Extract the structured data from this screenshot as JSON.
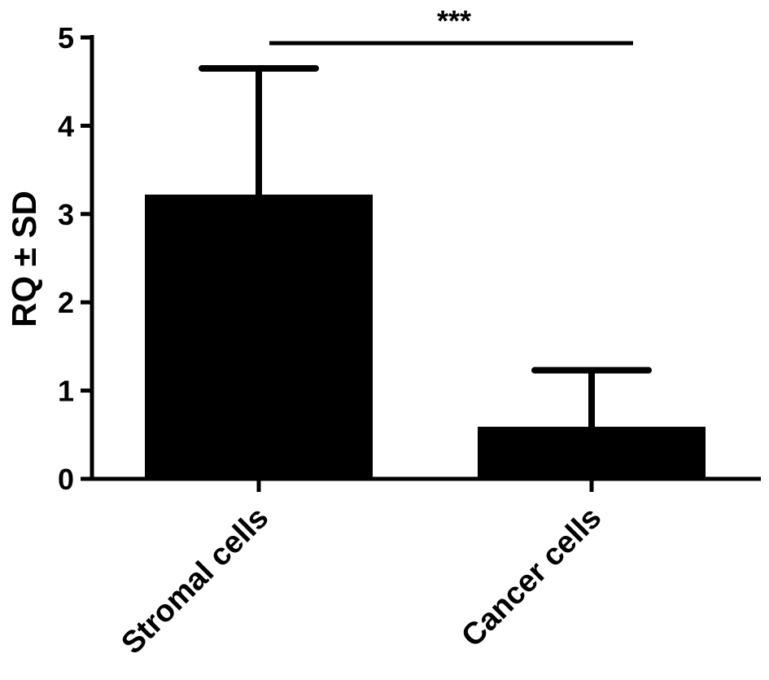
{
  "chart_data": {
    "type": "bar",
    "title": "",
    "xlabel": "",
    "ylabel": "RQ ± SD",
    "categories": [
      "Stromal cells",
      "Cancer cells"
    ],
    "values": [
      3.22,
      0.59
    ],
    "error_sd": [
      1.43,
      0.64
    ],
    "ylim": [
      0,
      5
    ],
    "yticks": [
      "0",
      "1",
      "2",
      "3",
      "4",
      "5"
    ],
    "grid": false,
    "legend": "none",
    "bar_color": "#000000",
    "significance": {
      "label": "***",
      "between": [
        "Stromal cells",
        "Cancer cells"
      ]
    }
  }
}
